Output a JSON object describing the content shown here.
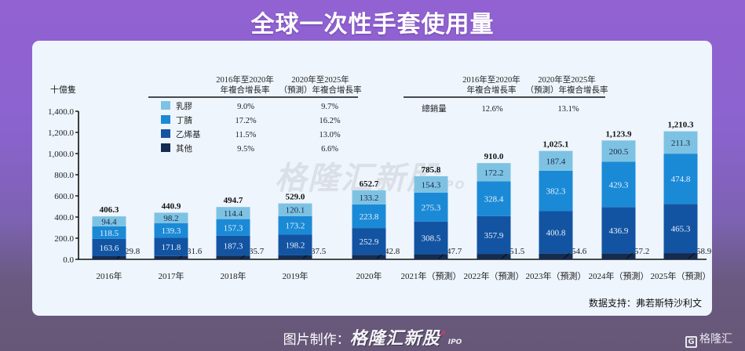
{
  "title": "全球一次性手套使用量",
  "source_label": "数据支持：弗若斯特沙利文",
  "footer": {
    "made_by_label": "图片制作：",
    "brand": "格隆汇新股",
    "brand_suffix": "IPO"
  },
  "logo_text": "格隆汇",
  "logo_letter": "G",
  "watermark": {
    "text": "格隆汇新股",
    "suffix": "IPO"
  },
  "colors": {
    "latex": "#7ec2e3",
    "nitrile": "#1b8ad6",
    "vinyl": "#1354a2",
    "other": "#142c52"
  },
  "legend_table": {
    "header_col1": [
      "2016年至2020年",
      "年複合增長率"
    ],
    "header_col2": [
      "2020年至2025年",
      "（預測）年複合增長率"
    ],
    "rows": [
      {
        "name": "乳膠",
        "cagr_2016_2020": "9.0%",
        "cagr_2020_2025": "9.7%",
        "color_key": "latex"
      },
      {
        "name": "丁腈",
        "cagr_2016_2020": "17.2%",
        "cagr_2020_2025": "16.2%",
        "color_key": "nitrile"
      },
      {
        "name": "乙烯基",
        "cagr_2016_2020": "11.5%",
        "cagr_2020_2025": "13.0%",
        "color_key": "vinyl"
      },
      {
        "name": "其他",
        "cagr_2016_2020": "9.5%",
        "cagr_2020_2025": "6.6%",
        "color_key": "other"
      }
    ]
  },
  "total_table": {
    "header_col1": [
      "2016年至2020年",
      "年複合增長率"
    ],
    "header_col2": [
      "2020年至2025年",
      "（預測）年複合增長率"
    ],
    "row": {
      "name": "總銷量",
      "cagr_2016_2020": "12.6%",
      "cagr_2020_2025": "13.1%"
    }
  },
  "chart_data": {
    "type": "bar",
    "stacked": true,
    "title": "全球一次性手套使用量",
    "xlabel": "",
    "ylabel": "十億隻",
    "ylim": [
      0,
      1400
    ],
    "yticks": [
      0,
      200,
      400,
      600,
      800,
      1000,
      1200,
      1400
    ],
    "ytick_labels": [
      "0.0",
      "200.0",
      "400.0",
      "600.0",
      "800.0",
      "1,000.0",
      "1,200.0",
      "1,400.0"
    ],
    "grid": false,
    "legend": "top-left",
    "categories": [
      "2016年",
      "2017年",
      "2018年",
      "2019年",
      "2020年",
      "2021年（預測）",
      "2022年（預測）",
      "2023年（預測）",
      "2024年（預測）",
      "2025年（預測）"
    ],
    "series": [
      {
        "name": "其他",
        "color_key": "other",
        "values": [
          29.8,
          31.6,
          35.7,
          37.5,
          42.8,
          47.7,
          51.5,
          54.6,
          57.2,
          58.9
        ]
      },
      {
        "name": "乙烯基",
        "color_key": "vinyl",
        "values": [
          163.6,
          171.8,
          187.3,
          198.2,
          252.9,
          308.5,
          357.9,
          400.8,
          436.9,
          465.3
        ]
      },
      {
        "name": "丁腈",
        "color_key": "nitrile",
        "values": [
          118.5,
          139.3,
          157.3,
          173.2,
          223.8,
          275.3,
          328.4,
          382.3,
          429.3,
          474.8
        ]
      },
      {
        "name": "乳膠",
        "color_key": "latex",
        "values": [
          94.4,
          98.2,
          114.4,
          120.1,
          133.2,
          154.3,
          172.2,
          187.4,
          200.5,
          211.3
        ]
      }
    ],
    "totals": [
      406.3,
      440.9,
      494.7,
      529.0,
      652.7,
      785.8,
      910.0,
      1025.1,
      1123.9,
      1210.3
    ],
    "total_labels": [
      "406.3",
      "440.9",
      "494.7",
      "529.0",
      "652.7",
      "785.8",
      "910.0",
      "1,025.1",
      "1,123.9",
      "1,210.3"
    ]
  }
}
